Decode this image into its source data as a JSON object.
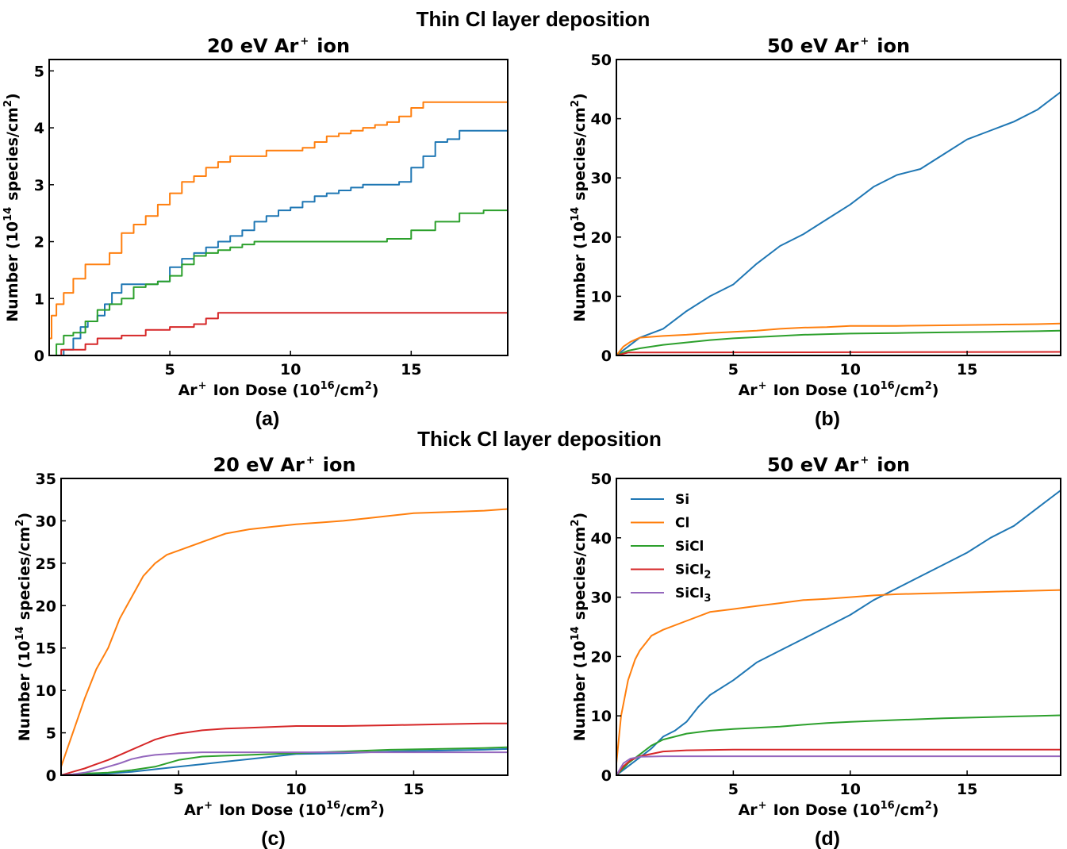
{
  "figure": {
    "section_top": "Thin Cl layer deposition",
    "section_bottom": "Thick Cl layer deposition"
  },
  "colors": {
    "Si": "#1f77b4",
    "Cl": "#ff7f0e",
    "SiCl": "#2ca02c",
    "SiCl2": "#d62728",
    "SiCl3": "#9467bd"
  },
  "chart_data": [
    {
      "id": "a",
      "type": "line",
      "panel_label": "(a)",
      "title": {
        "pre": "20 eV Ar",
        "sup": "+",
        "post": "ion"
      },
      "xlabel": {
        "pre": "Ar",
        "sup1": "+",
        "mid": "Ion Dose (10",
        "sup2": "16",
        "post": "/cm",
        "sup3": "2",
        "end": ")"
      },
      "ylabel": {
        "pre": "Number (10",
        "sup1": "14",
        "mid": "species/cm",
        "sup2": "2",
        "end": ")"
      },
      "xlim": [
        0,
        19
      ],
      "ylim": [
        0,
        5.2
      ],
      "xticks": [
        5,
        10,
        15
      ],
      "yticks": [
        0,
        1,
        2,
        3,
        4,
        5
      ],
      "step": true,
      "series": [
        {
          "key": "Si",
          "x": [
            0,
            0.3,
            0.6,
            1.0,
            1.3,
            1.6,
            2.0,
            2.3,
            2.6,
            3.0,
            3.5,
            4.0,
            4.5,
            5.0,
            5.5,
            6.0,
            6.5,
            7.0,
            7.5,
            8.0,
            8.5,
            9.0,
            9.5,
            10.0,
            10.5,
            11.0,
            11.5,
            12.0,
            12.5,
            13.0,
            13.5,
            14.0,
            14.5,
            15.0,
            15.5,
            16.0,
            16.5,
            17.0,
            17.5,
            19.0
          ],
          "y": [
            0,
            0,
            0.1,
            0.3,
            0.5,
            0.6,
            0.7,
            0.9,
            1.1,
            1.25,
            1.25,
            1.25,
            1.3,
            1.55,
            1.7,
            1.8,
            1.9,
            2.0,
            2.1,
            2.2,
            2.35,
            2.45,
            2.55,
            2.6,
            2.7,
            2.8,
            2.85,
            2.9,
            2.95,
            3.0,
            3.0,
            3.0,
            3.05,
            3.3,
            3.5,
            3.75,
            3.8,
            3.95,
            3.95,
            3.95
          ]
        },
        {
          "key": "Cl",
          "x": [
            0,
            0.1,
            0.3,
            0.6,
            1.0,
            1.5,
            2.0,
            2.5,
            3.0,
            3.5,
            4.0,
            4.5,
            5.0,
            5.5,
            6.0,
            6.5,
            7.0,
            7.5,
            8.0,
            8.5,
            9.0,
            9.5,
            10.0,
            10.5,
            11.0,
            11.5,
            12.0,
            12.5,
            13.0,
            13.5,
            14.0,
            14.5,
            15.0,
            15.5,
            16.0,
            17.0,
            19.0
          ],
          "y": [
            0.3,
            0.7,
            0.9,
            1.1,
            1.35,
            1.6,
            1.6,
            1.8,
            2.15,
            2.3,
            2.45,
            2.65,
            2.85,
            3.05,
            3.15,
            3.3,
            3.4,
            3.5,
            3.5,
            3.5,
            3.6,
            3.6,
            3.6,
            3.65,
            3.75,
            3.85,
            3.9,
            3.95,
            4.0,
            4.05,
            4.1,
            4.2,
            4.35,
            4.45,
            4.45,
            4.45,
            4.45
          ]
        },
        {
          "key": "SiCl",
          "x": [
            0,
            0.3,
            0.6,
            1.0,
            1.5,
            2.0,
            2.5,
            3.0,
            3.5,
            4.0,
            4.5,
            5.0,
            5.5,
            6.0,
            6.5,
            7.0,
            7.5,
            8.0,
            8.5,
            9.0,
            10.0,
            11.0,
            12.0,
            13.0,
            14.0,
            15.0,
            16.0,
            17.0,
            18.0,
            19.0
          ],
          "y": [
            0,
            0.2,
            0.35,
            0.4,
            0.6,
            0.8,
            0.9,
            1.0,
            1.2,
            1.25,
            1.3,
            1.4,
            1.6,
            1.75,
            1.8,
            1.85,
            1.9,
            1.95,
            2.0,
            2.0,
            2.0,
            2.0,
            2.0,
            2.0,
            2.05,
            2.2,
            2.35,
            2.5,
            2.55,
            2.55
          ]
        },
        {
          "key": "SiCl2",
          "x": [
            0,
            0.5,
            1.0,
            1.5,
            2.0,
            3.0,
            4.0,
            5.0,
            6.0,
            6.5,
            7.0,
            19.0
          ],
          "y": [
            0,
            0.1,
            0.1,
            0.2,
            0.3,
            0.35,
            0.45,
            0.5,
            0.55,
            0.65,
            0.75,
            0.75
          ]
        }
      ]
    },
    {
      "id": "b",
      "type": "line",
      "panel_label": "(b)",
      "title": {
        "pre": "50 eV Ar",
        "sup": "+",
        "post": "ion"
      },
      "xlabel": {
        "pre": "Ar",
        "sup1": "+",
        "mid": "Ion Dose (10",
        "sup2": "16",
        "post": "/cm",
        "sup3": "2",
        "end": ")"
      },
      "ylabel": {
        "pre": "Number (10",
        "sup1": "14",
        "mid": "species/cm",
        "sup2": "2",
        "end": ")"
      },
      "xlim": [
        0,
        19
      ],
      "ylim": [
        0,
        50
      ],
      "xticks": [
        5,
        10,
        15
      ],
      "yticks": [
        0,
        10,
        20,
        30,
        40,
        50
      ],
      "step": false,
      "series": [
        {
          "key": "Si",
          "x": [
            0,
            0.5,
            1,
            2,
            3,
            4,
            5,
            6,
            7,
            8,
            9,
            10,
            11,
            12,
            13,
            14,
            15,
            16,
            17,
            18,
            19
          ],
          "y": [
            0,
            1.5,
            3,
            4.5,
            7.5,
            10,
            12,
            15.5,
            18.5,
            20.5,
            23,
            25.5,
            28.5,
            30.5,
            31.5,
            34,
            36.5,
            38,
            39.5,
            41.5,
            44.5
          ]
        },
        {
          "key": "Cl",
          "x": [
            0,
            0.3,
            0.6,
            1,
            2,
            3,
            4,
            5,
            6,
            7,
            8,
            9,
            10,
            12,
            14,
            16,
            18,
            19
          ],
          "y": [
            0,
            1.5,
            2.3,
            3,
            3.3,
            3.5,
            3.8,
            4,
            4.2,
            4.5,
            4.7,
            4.8,
            5,
            5,
            5.1,
            5.2,
            5.3,
            5.4
          ]
        },
        {
          "key": "SiCl",
          "x": [
            0,
            0.5,
            1,
            2,
            3,
            4,
            5,
            6,
            7,
            8,
            9,
            10,
            12,
            14,
            16,
            18,
            19
          ],
          "y": [
            0,
            0.8,
            1.2,
            1.8,
            2.2,
            2.6,
            2.9,
            3.1,
            3.3,
            3.5,
            3.6,
            3.7,
            3.8,
            3.9,
            4.0,
            4.1,
            4.2
          ]
        },
        {
          "key": "SiCl2",
          "x": [
            0,
            0.5,
            19
          ],
          "y": [
            0,
            0.5,
            0.6
          ]
        }
      ]
    },
    {
      "id": "c",
      "type": "line",
      "panel_label": "(c)",
      "title": {
        "pre": "20 eV Ar",
        "sup": "+",
        "post": "ion"
      },
      "xlabel": {
        "pre": "Ar",
        "sup1": "+",
        "mid": "Ion Dose (10",
        "sup2": "16",
        "post": "/cm",
        "sup3": "2",
        "end": ")"
      },
      "ylabel": {
        "pre": "Number (10",
        "sup1": "14",
        "mid": "species/cm",
        "sup2": "2",
        "end": ")"
      },
      "xlim": [
        0,
        19
      ],
      "ylim": [
        0,
        35
      ],
      "xticks": [
        5,
        10,
        15
      ],
      "yticks": [
        0,
        5,
        10,
        15,
        20,
        25,
        30,
        35
      ],
      "step": false,
      "series": [
        {
          "key": "Si",
          "x": [
            0,
            2,
            3,
            4,
            5,
            6,
            7,
            8,
            9,
            10,
            12,
            14,
            16,
            18,
            19
          ],
          "y": [
            0,
            0.2,
            0.4,
            0.7,
            1.0,
            1.3,
            1.6,
            1.9,
            2.2,
            2.5,
            2.6,
            2.8,
            2.9,
            3.0,
            3.1
          ]
        },
        {
          "key": "Cl",
          "x": [
            0,
            0.5,
            1,
            1.5,
            2,
            2.5,
            3,
            3.5,
            4,
            4.5,
            5,
            6,
            7,
            8,
            9,
            10,
            11,
            12,
            13,
            14,
            15,
            16,
            17,
            18,
            19
          ],
          "y": [
            1,
            5,
            9,
            12.5,
            15,
            18.5,
            21,
            23.5,
            25,
            26,
            26.5,
            27.5,
            28.5,
            29,
            29.3,
            29.6,
            29.8,
            30,
            30.3,
            30.6,
            30.9,
            31,
            31.1,
            31.2,
            31.4
          ]
        },
        {
          "key": "SiCl",
          "x": [
            0,
            1,
            2,
            3,
            4,
            5,
            6,
            7,
            8,
            10,
            12,
            14,
            16,
            18,
            19
          ],
          "y": [
            0,
            0.2,
            0.3,
            0.6,
            1.0,
            1.8,
            2.2,
            2.3,
            2.4,
            2.6,
            2.8,
            3.0,
            3.1,
            3.2,
            3.3
          ]
        },
        {
          "key": "SiCl2",
          "x": [
            0,
            0.5,
            1,
            1.5,
            2,
            2.5,
            3,
            3.5,
            4,
            4.5,
            5,
            6,
            7,
            8,
            9,
            10,
            12,
            14,
            16,
            18,
            19
          ],
          "y": [
            0,
            0.4,
            0.8,
            1.3,
            1.8,
            2.4,
            3.0,
            3.6,
            4.2,
            4.6,
            4.9,
            5.3,
            5.5,
            5.6,
            5.7,
            5.8,
            5.8,
            5.9,
            6.0,
            6.1,
            6.1
          ]
        },
        {
          "key": "SiCl3",
          "x": [
            0,
            0.5,
            1,
            1.5,
            2,
            2.5,
            3,
            3.5,
            4,
            5,
            6,
            8,
            10,
            12,
            14,
            16,
            19
          ],
          "y": [
            0,
            0.1,
            0.3,
            0.6,
            1.0,
            1.4,
            1.9,
            2.2,
            2.4,
            2.6,
            2.7,
            2.7,
            2.7,
            2.7,
            2.7,
            2.7,
            2.7
          ]
        }
      ]
    },
    {
      "id": "d",
      "type": "line",
      "panel_label": "(d)",
      "title": {
        "pre": "50 eV Ar",
        "sup": "+",
        "post": "ion"
      },
      "xlabel": {
        "pre": "Ar",
        "sup1": "+",
        "mid": "Ion Dose (10",
        "sup2": "16",
        "post": "/cm",
        "sup3": "2",
        "end": ")"
      },
      "ylabel": {
        "pre": "Number (10",
        "sup1": "14",
        "mid": "species/cm",
        "sup2": "2",
        "end": ")"
      },
      "xlim": [
        0,
        19
      ],
      "ylim": [
        0,
        50
      ],
      "xticks": [
        5,
        10,
        15
      ],
      "yticks": [
        0,
        10,
        20,
        30,
        40,
        50
      ],
      "step": false,
      "legend": {
        "position": "top-left",
        "entries": [
          {
            "key": "Si",
            "label": "Si",
            "sub": ""
          },
          {
            "key": "Cl",
            "label": "Cl",
            "sub": ""
          },
          {
            "key": "SiCl",
            "label": "SiCl",
            "sub": ""
          },
          {
            "key": "SiCl2",
            "label": "SiCl",
            "sub": "2"
          },
          {
            "key": "SiCl3",
            "label": "SiCl",
            "sub": "3"
          }
        ]
      },
      "series": [
        {
          "key": "Si",
          "x": [
            0,
            0.5,
            1,
            1.5,
            2,
            2.5,
            3,
            3.5,
            4,
            5,
            6,
            7,
            8,
            9,
            10,
            11,
            12,
            13,
            14,
            15,
            16,
            17,
            18,
            19
          ],
          "y": [
            0,
            1.5,
            3,
            4.5,
            6.5,
            7.5,
            9,
            11.5,
            13.5,
            16,
            19,
            21,
            23,
            25,
            27,
            29.5,
            31.5,
            33.5,
            35.5,
            37.5,
            40,
            42,
            45,
            48
          ]
        },
        {
          "key": "Cl",
          "x": [
            0,
            0.2,
            0.5,
            0.8,
            1,
            1.5,
            2,
            3,
            4,
            5,
            6,
            7,
            8,
            9,
            10,
            11,
            12,
            13,
            14,
            15,
            16,
            17,
            18,
            19
          ],
          "y": [
            2,
            10,
            16,
            19.5,
            21,
            23.5,
            24.5,
            26,
            27.5,
            28,
            28.5,
            29,
            29.5,
            29.7,
            30,
            30.3,
            30.5,
            30.6,
            30.7,
            30.8,
            30.9,
            31,
            31.1,
            31.2
          ]
        },
        {
          "key": "SiCl",
          "x": [
            0,
            0.5,
            1,
            1.5,
            2,
            3,
            4,
            5,
            6,
            7,
            8,
            9,
            10,
            12,
            14,
            16,
            18,
            19
          ],
          "y": [
            0,
            2,
            3.5,
            5,
            6,
            7,
            7.5,
            7.8,
            8,
            8.2,
            8.5,
            8.8,
            9,
            9.3,
            9.6,
            9.8,
            10,
            10.1
          ]
        },
        {
          "key": "SiCl2",
          "x": [
            0,
            0.3,
            0.6,
            1,
            1.5,
            2,
            3,
            5,
            10,
            15,
            19
          ],
          "y": [
            0,
            1.5,
            2.5,
            3.2,
            3.6,
            4,
            4.2,
            4.3,
            4.3,
            4.3,
            4.3
          ]
        },
        {
          "key": "SiCl3",
          "x": [
            0,
            0.3,
            0.6,
            1,
            2,
            5,
            10,
            15,
            19
          ],
          "y": [
            0,
            2,
            2.8,
            3.1,
            3.2,
            3.2,
            3.2,
            3.2,
            3.2
          ]
        }
      ]
    }
  ]
}
